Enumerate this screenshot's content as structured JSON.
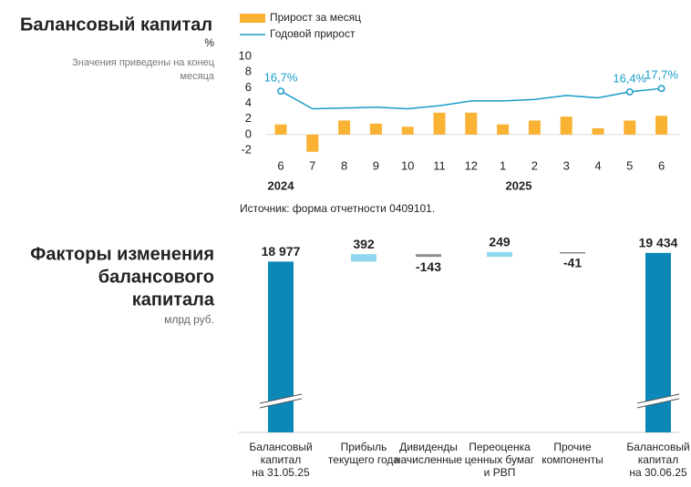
{
  "chart_data": [
    {
      "type": "combo",
      "title": "Балансовый капитал",
      "unit": "%",
      "subtitle": [
        "Значения приведены на конец",
        "месяца"
      ],
      "categories": [
        "6",
        "7",
        "8",
        "9",
        "10",
        "11",
        "12",
        "1",
        "2",
        "3",
        "4",
        "5",
        "6"
      ],
      "year_labels": [
        "2024",
        "2025"
      ],
      "series": [
        {
          "name": "Прирост за месяц",
          "kind": "bar",
          "color": "#f9b233",
          "values": [
            1.3,
            -2.2,
            1.8,
            1.4,
            1.0,
            2.8,
            2.8,
            1.3,
            1.8,
            2.3,
            0.8,
            1.8,
            2.4
          ]
        },
        {
          "name": "Годовой прирост",
          "kind": "line",
          "color": "#1a9cc8",
          "axis": "y2",
          "values": [
            16.7,
            9.9,
            10.2,
            10.5,
            9.9,
            11.1,
            12.9,
            12.9,
            13.5,
            15.0,
            14.1,
            16.4,
            17.7
          ],
          "value_labels": [
            "16,7%",
            null,
            null,
            null,
            null,
            null,
            null,
            null,
            null,
            null,
            null,
            "16,4%",
            "17,7%"
          ]
        }
      ],
      "ylim": [
        -2,
        10
      ],
      "yticks": [
        -2,
        0,
        2,
        4,
        6,
        8,
        10
      ],
      "y2lim": [
        -6,
        30
      ],
      "source": "Источник: форма отчетности 0409101."
    },
    {
      "type": "waterfall",
      "title": [
        "Факторы изменения",
        "балансового",
        "капитала"
      ],
      "unit": "млрд руб.",
      "categories": [
        [
          "Балансовый",
          "капитал",
          "на 31.05.25"
        ],
        [
          "Прибыль",
          "текущего года"
        ],
        [
          "Дивиденды",
          "начисленные"
        ],
        [
          "Переоценка",
          "ценных бумаг",
          "и РВП"
        ],
        [
          "Прочие",
          "компоненты"
        ],
        [
          "Балансовый",
          "капитал",
          "на 30.06.25"
        ]
      ],
      "values": [
        18977,
        392,
        -143,
        249,
        -41,
        19434
      ],
      "value_labels": [
        "18 977",
        "392",
        "-143",
        "249",
        "-41",
        "19 434"
      ],
      "totals": [
        true,
        false,
        false,
        false,
        false,
        true
      ],
      "colors": {
        "total": "#0b87b8",
        "increase": "#8fd6f0",
        "decrease": "#8c8c8c"
      },
      "ylim": [
        10000,
        20000
      ]
    }
  ]
}
